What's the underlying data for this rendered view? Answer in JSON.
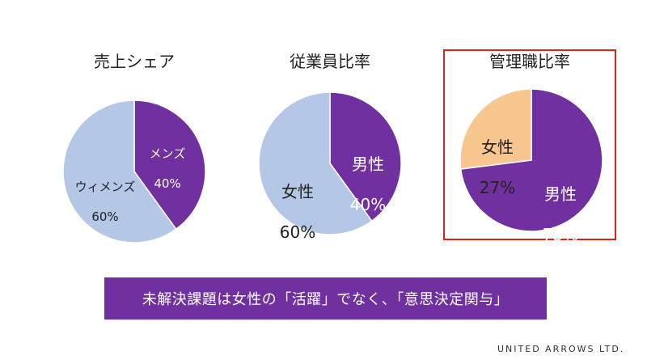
{
  "colors": {
    "purple": "#7030a0",
    "light_blue": "#b4c7e7",
    "peach": "#f9c68f",
    "highlight_border": "#e0201b",
    "white": "#ffffff",
    "dark_text": "#222222"
  },
  "chart_data": [
    {
      "type": "pie",
      "title": "売上シェア",
      "slices": [
        {
          "label": "メンズ",
          "value": 40,
          "value_text": "40%",
          "color": "#7030a0"
        },
        {
          "label": "ウィメンズ",
          "value": 60,
          "value_text": "60%",
          "color": "#b4c7e7"
        }
      ]
    },
    {
      "type": "pie",
      "title": "従業員比率",
      "slices": [
        {
          "label": "男性",
          "value": 40,
          "value_text": "40%",
          "color": "#7030a0"
        },
        {
          "label": "女性",
          "value": 60,
          "value_text": "60%",
          "color": "#b4c7e7"
        }
      ]
    },
    {
      "type": "pie",
      "title": "管理職比率",
      "slices": [
        {
          "label": "男性",
          "value": 73,
          "value_text": "73%",
          "color": "#7030a0"
        },
        {
          "label": "女性",
          "value": 27,
          "value_text": "27%",
          "color": "#f9c68f"
        }
      ]
    }
  ],
  "banner": {
    "text": "未解決課題は女性の「活躍」でなく、「意思決定関与」"
  },
  "logo": {
    "text": "UNITED ARROWS LTD."
  }
}
